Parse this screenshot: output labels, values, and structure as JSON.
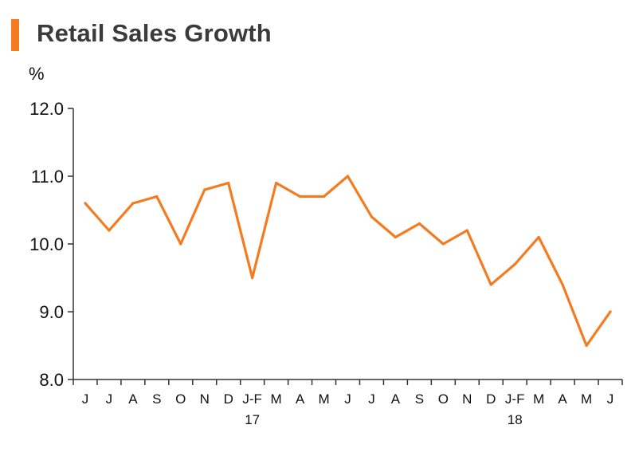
{
  "header": {
    "title": "Retail Sales Growth",
    "accent_color": "#f47b20"
  },
  "chart_data": {
    "type": "line",
    "title": "Retail Sales Growth",
    "unit_label": "%",
    "xlabel": "",
    "ylabel": "%",
    "ylim": [
      8.0,
      12.0
    ],
    "y_ticks": [
      "8.0",
      "9.0",
      "10.0",
      "11.0",
      "12.0"
    ],
    "categories": [
      "J",
      "J",
      "A",
      "S",
      "O",
      "N",
      "D",
      "J-F",
      "M",
      "A",
      "M",
      "J",
      "J",
      "A",
      "S",
      "O",
      "N",
      "D",
      "J-F",
      "M",
      "A",
      "M",
      "J"
    ],
    "year_labels": [
      {
        "index": 7,
        "label": "17"
      },
      {
        "index": 18,
        "label": "18"
      }
    ],
    "series": [
      {
        "color": "#f47b20",
        "values": [
          10.6,
          10.2,
          10.6,
          10.7,
          10.0,
          10.8,
          10.9,
          9.5,
          10.9,
          10.7,
          10.7,
          11.0,
          10.4,
          10.1,
          10.3,
          10.0,
          10.2,
          9.4,
          9.7,
          10.1,
          9.4,
          8.5,
          9.0
        ]
      }
    ],
    "grid": false,
    "legend": "none"
  }
}
